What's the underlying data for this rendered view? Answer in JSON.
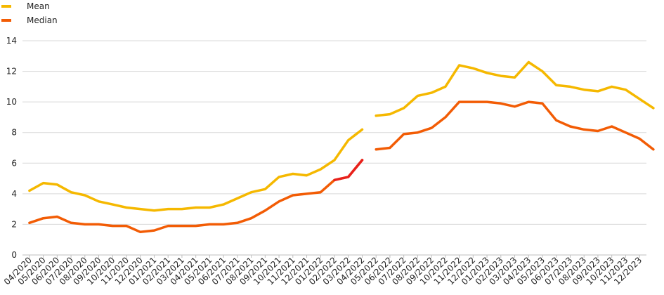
{
  "chart_data": {
    "type": "line",
    "title": "",
    "xlabel": "",
    "ylabel": "",
    "ylim": [
      0,
      14
    ],
    "yticks": [
      0,
      2,
      4,
      6,
      8,
      10,
      12,
      14
    ],
    "grid": true,
    "legend_placement": "top-left",
    "categories": [
      "04/2020",
      "05/2020",
      "06/2020",
      "07/2020",
      "08/2020",
      "09/2020",
      "10/2020",
      "11/2020",
      "12/2020",
      "01/2021",
      "02/2021",
      "03/2021",
      "04/2021",
      "05/2021",
      "06/2021",
      "07/2021",
      "08/2021",
      "09/2021",
      "10/2021",
      "11/2021",
      "12/2021",
      "01/2022",
      "02/2022",
      "03/2022",
      "04/2022",
      "05/2022",
      "06/2022",
      "07/2022",
      "08/2022",
      "09/2022",
      "10/2022",
      "11/2022",
      "12/2022",
      "01/2023",
      "02/2023",
      "03/2023",
      "04/2023",
      "05/2023",
      "06/2023",
      "07/2023",
      "08/2023",
      "09/2023",
      "10/2023",
      "11/2023",
      "12/2023"
    ],
    "series": [
      {
        "name": "Mean",
        "color": "#f5b800",
        "segments": [
          {
            "start": 0,
            "values": [
              4.2,
              4.7,
              4.6,
              4.1,
              3.9,
              3.5,
              3.3,
              3.1,
              3.0,
              2.9,
              3.0,
              3.0,
              3.1,
              3.1,
              3.3,
              3.7,
              4.1,
              4.3,
              5.1,
              5.3,
              5.2,
              5.6,
              6.2,
              7.5,
              8.2
            ]
          },
          {
            "start": 25,
            "values": [
              9.1,
              9.2,
              9.6,
              10.4,
              10.6,
              11.0,
              12.4,
              12.2,
              11.9,
              11.7,
              11.6,
              12.6,
              12.0,
              11.1,
              11.0,
              10.8,
              10.7,
              11.0,
              10.8,
              10.2,
              9.6
            ]
          }
        ]
      },
      {
        "name": "Median",
        "color": "#f25c05",
        "segments": [
          {
            "start": 0,
            "values": [
              2.1,
              2.4,
              2.5,
              2.1,
              2.0,
              2.0,
              1.9,
              1.9,
              1.5,
              1.6,
              1.9,
              1.9,
              1.9,
              2.0,
              2.0,
              2.1,
              2.4,
              2.9,
              3.5,
              3.9,
              4.0,
              4.1,
              4.9,
              5.1,
              6.2
            ]
          },
          {
            "start": 25,
            "values": [
              6.9,
              7.0,
              7.9,
              8.0,
              8.3,
              9.0,
              10.0,
              10.0,
              10.0,
              9.9,
              9.7,
              10.0,
              9.9,
              8.8,
              8.4,
              8.2,
              8.1,
              8.4,
              8.0,
              7.6,
              6.9
            ]
          }
        ],
        "highlight": {
          "from": 22,
          "to": 24,
          "color": "#e8201c"
        }
      }
    ]
  }
}
